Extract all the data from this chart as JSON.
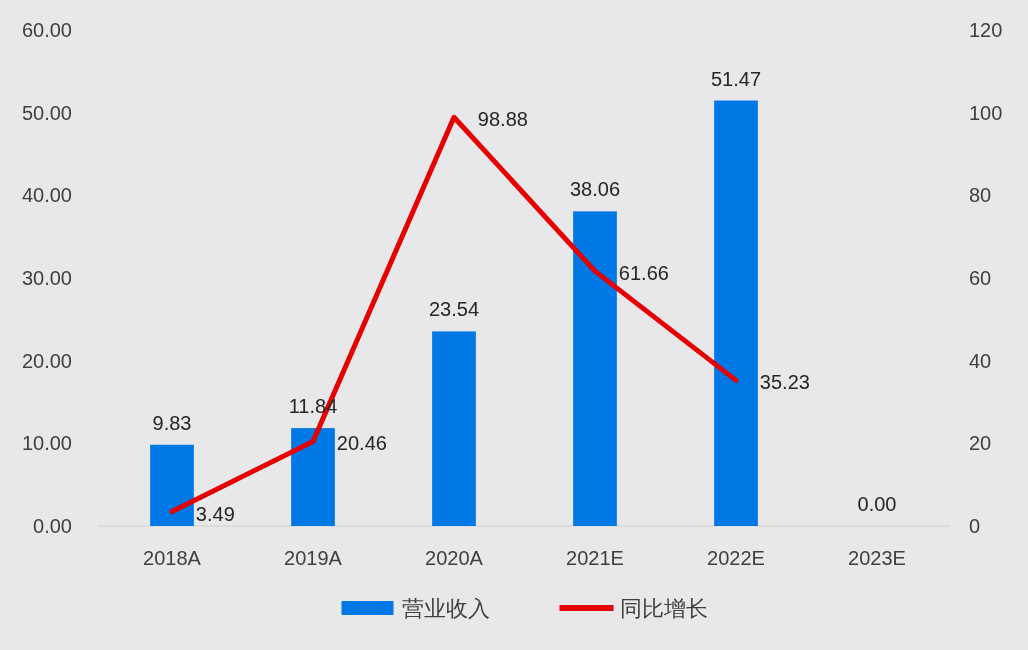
{
  "chart_data": {
    "type": "bar",
    "categories": [
      "2018A",
      "2019A",
      "2020A",
      "2021E",
      "2022E",
      "2023E"
    ],
    "series": [
      {
        "name": "营业收入",
        "color": "#0078e6",
        "values": [
          9.83,
          11.84,
          23.54,
          38.06,
          51.47,
          0
        ],
        "value_labels": [
          "9.83",
          "11.84",
          "23.54",
          "38.06",
          "51.47",
          "0.00"
        ]
      },
      {
        "name": "同比增长",
        "type": "line",
        "axis": "y2",
        "color": "#e60000",
        "values": [
          3.49,
          20.46,
          98.88,
          61.66,
          35.23,
          null
        ],
        "value_labels": [
          "3.49",
          "20.46",
          "98.88",
          "61.66",
          "35.23",
          null
        ]
      }
    ],
    "ylim": [
      0,
      60
    ],
    "yticks": [
      {
        "value": 0,
        "label": "0.00"
      },
      {
        "value": 10,
        "label": "10.00"
      },
      {
        "value": 20,
        "label": "20.00"
      },
      {
        "value": 30,
        "label": "30.00"
      },
      {
        "value": 40,
        "label": "40.00"
      },
      {
        "value": 50,
        "label": "50.00"
      },
      {
        "value": 60,
        "label": "60.00"
      }
    ],
    "y2lim": [
      0,
      120
    ],
    "y2ticks": [
      0,
      20,
      40,
      60,
      80,
      100,
      120
    ],
    "legend": "bottom"
  }
}
